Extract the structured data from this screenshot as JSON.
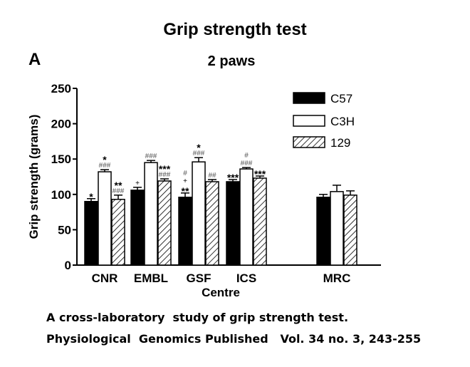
{
  "figure_title": "Grip strength test",
  "panel_letter": "A",
  "caption_line1": "A cross-laboratory  study of grip strength test.",
  "caption_line2": "Physiological  Genomics Published   Vol. 34 no. 3, 243-255",
  "chart_data": {
    "type": "bar",
    "title": "2 paws",
    "xlabel": "Centre",
    "ylabel": "Grip strength (grams)",
    "ylim": [
      0,
      250
    ],
    "yticks": [
      0,
      50,
      100,
      150,
      200,
      250
    ],
    "categories": [
      "CNR",
      "EMBL",
      "GSF",
      "ICS",
      "MRC"
    ],
    "legend_position": "top-right",
    "series": [
      {
        "name": "C57",
        "fill": "black",
        "values": [
          90,
          106,
          96,
          118,
          96
        ],
        "errors": [
          4,
          4,
          6,
          3,
          4
        ],
        "annotations": [
          [
            "*"
          ],
          [
            "+"
          ],
          [
            "#",
            "+",
            "**"
          ],
          [
            "***"
          ],
          []
        ]
      },
      {
        "name": "C3H",
        "fill": "white",
        "values": [
          132,
          145,
          146,
          136,
          104
        ],
        "errors": [
          3,
          3,
          6,
          2,
          9
        ],
        "annotations": [
          [
            "*",
            "###"
          ],
          [
            "###"
          ],
          [
            "*",
            "###"
          ],
          [
            "#",
            "###"
          ],
          []
        ]
      },
      {
        "name": "129",
        "fill": "hatched",
        "values": [
          93,
          119,
          118,
          123,
          99
        ],
        "errors": [
          6,
          3,
          3,
          3,
          6
        ],
        "annotations": [
          [
            "**",
            "###"
          ],
          [
            "***",
            "###"
          ],
          [
            "##"
          ],
          [
            "***"
          ],
          []
        ]
      }
    ]
  }
}
